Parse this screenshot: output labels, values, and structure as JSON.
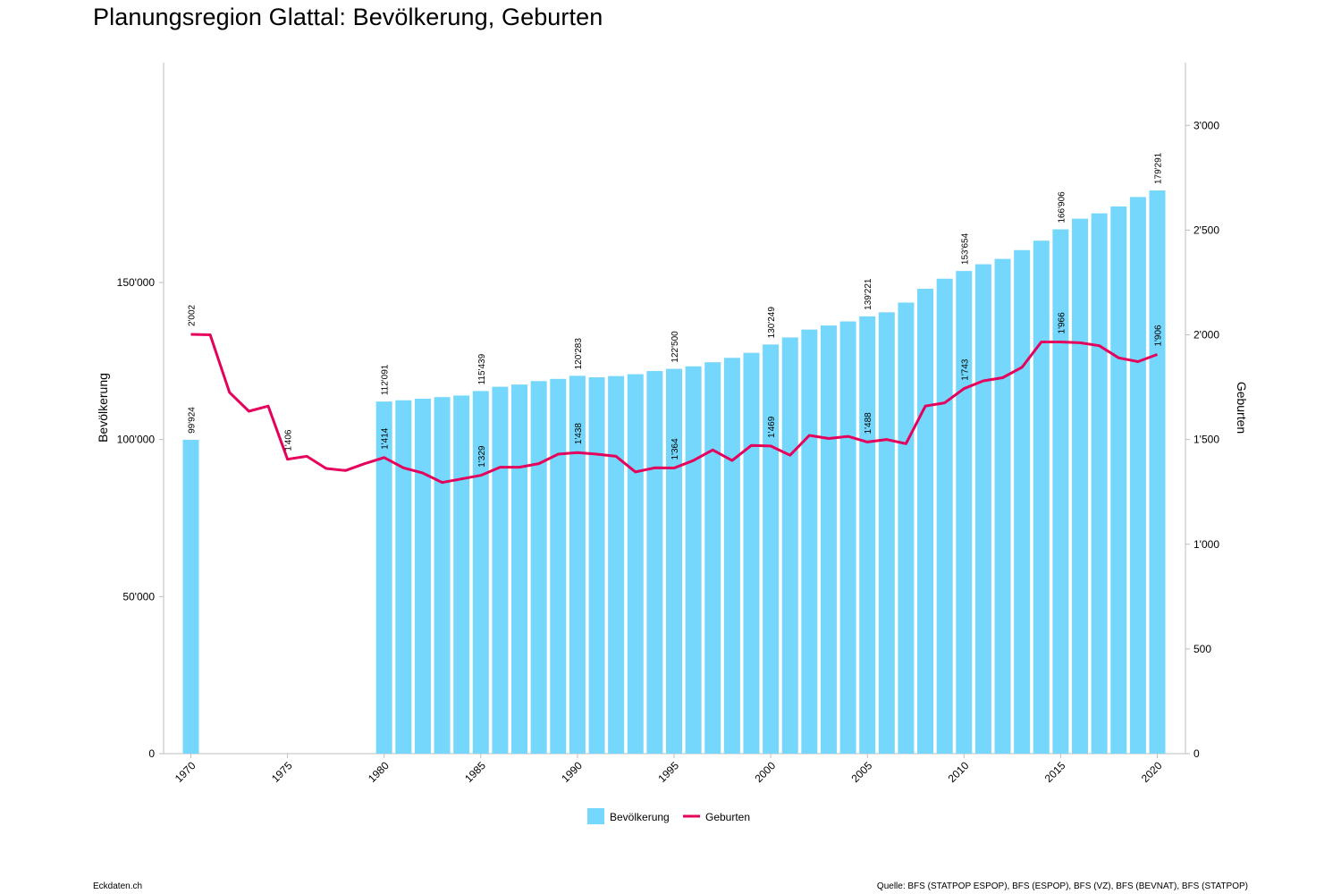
{
  "title": "Planungsregion Glattal: Bevölkerung, Geburten",
  "footer": {
    "site": "Eckdaten.ch",
    "source": "Quelle: BFS (STATPOP ESPOP), BFS (ESPOP), BFS (VZ), BFS (BEVNAT), BFS (STATPOP)"
  },
  "colors": {
    "bars": "#74d7fb",
    "line": "#e5005b",
    "axis": "#bdbdbd"
  },
  "chart_data": {
    "type": "bar+line",
    "x_ticks": [
      1970,
      1975,
      1980,
      1985,
      1990,
      1995,
      2000,
      2005,
      2010,
      2015,
      2020
    ],
    "left_axis": {
      "label": "Bevölkerung",
      "range": [
        0,
        220000
      ],
      "ticks": [
        "0",
        "50'000",
        "100'000",
        "150'000"
      ],
      "tick_values": [
        0,
        50000,
        100000,
        150000
      ]
    },
    "right_axis": {
      "label": "Geburten",
      "range": [
        0,
        3300
      ],
      "ticks": [
        "0",
        "500",
        "1'000",
        "1'500",
        "2'000",
        "2'500",
        "3'000"
      ],
      "tick_values": [
        0,
        500,
        1000,
        1500,
        2000,
        2500,
        3000
      ]
    },
    "grid": false,
    "legend_position": "bottom-center",
    "series": [
      {
        "name": "Bevölkerung",
        "type": "bar",
        "axis": "left",
        "points": [
          [
            1970,
            99924
          ],
          [
            1980,
            112091
          ],
          [
            1981,
            112500
          ],
          [
            1982,
            113000
          ],
          [
            1983,
            113500
          ],
          [
            1984,
            114000
          ],
          [
            1985,
            115439
          ],
          [
            1986,
            116800
          ],
          [
            1987,
            117500
          ],
          [
            1988,
            118600
          ],
          [
            1989,
            119300
          ],
          [
            1990,
            120283
          ],
          [
            1991,
            119800
          ],
          [
            1992,
            120200
          ],
          [
            1993,
            120800
          ],
          [
            1994,
            121800
          ],
          [
            1995,
            122500
          ],
          [
            1996,
            123300
          ],
          [
            1997,
            124600
          ],
          [
            1998,
            126000
          ],
          [
            1999,
            127600
          ],
          [
            2000,
            130249
          ],
          [
            2001,
            132500
          ],
          [
            2002,
            135000
          ],
          [
            2003,
            136300
          ],
          [
            2004,
            137600
          ],
          [
            2005,
            139221
          ],
          [
            2006,
            140500
          ],
          [
            2007,
            143600
          ],
          [
            2008,
            148000
          ],
          [
            2009,
            151200
          ],
          [
            2010,
            153654
          ],
          [
            2011,
            155800
          ],
          [
            2012,
            157500
          ],
          [
            2013,
            160300
          ],
          [
            2014,
            163300
          ],
          [
            2015,
            166906
          ],
          [
            2016,
            170300
          ],
          [
            2017,
            172000
          ],
          [
            2018,
            174200
          ],
          [
            2019,
            177200
          ],
          [
            2020,
            179291
          ]
        ],
        "labels": [
          [
            1970,
            "99'924"
          ],
          [
            1980,
            "112'091"
          ],
          [
            1985,
            "115'439"
          ],
          [
            1990,
            "120'283"
          ],
          [
            1995,
            "122'500"
          ],
          [
            2000,
            "130'249"
          ],
          [
            2005,
            "139'221"
          ],
          [
            2010,
            "153'654"
          ],
          [
            2015,
            "166'906"
          ],
          [
            2020,
            "179'291"
          ]
        ]
      },
      {
        "name": "Geburten",
        "type": "line",
        "axis": "right",
        "points": [
          [
            1970,
            2002
          ],
          [
            1971,
            2000
          ],
          [
            1972,
            1725
          ],
          [
            1973,
            1635
          ],
          [
            1974,
            1660
          ],
          [
            1975,
            1406
          ],
          [
            1976,
            1420
          ],
          [
            1977,
            1362
          ],
          [
            1978,
            1352
          ],
          [
            1979,
            1385
          ],
          [
            1980,
            1414
          ],
          [
            1981,
            1365
          ],
          [
            1982,
            1340
          ],
          [
            1983,
            1295
          ],
          [
            1984,
            1312
          ],
          [
            1985,
            1329
          ],
          [
            1986,
            1368
          ],
          [
            1987,
            1368
          ],
          [
            1988,
            1385
          ],
          [
            1989,
            1430
          ],
          [
            1990,
            1438
          ],
          [
            1991,
            1430
          ],
          [
            1992,
            1420
          ],
          [
            1993,
            1345
          ],
          [
            1994,
            1365
          ],
          [
            1995,
            1364
          ],
          [
            1996,
            1400
          ],
          [
            1997,
            1450
          ],
          [
            1998,
            1400
          ],
          [
            1999,
            1472
          ],
          [
            2000,
            1469
          ],
          [
            2001,
            1425
          ],
          [
            2002,
            1520
          ],
          [
            2003,
            1505
          ],
          [
            2004,
            1515
          ],
          [
            2005,
            1488
          ],
          [
            2006,
            1500
          ],
          [
            2007,
            1480
          ],
          [
            2008,
            1660
          ],
          [
            2009,
            1675
          ],
          [
            2010,
            1743
          ],
          [
            2011,
            1780
          ],
          [
            2012,
            1795
          ],
          [
            2013,
            1845
          ],
          [
            2014,
            1966
          ],
          [
            2015,
            1966
          ],
          [
            2016,
            1962
          ],
          [
            2017,
            1948
          ],
          [
            2018,
            1890
          ],
          [
            2019,
            1872
          ],
          [
            2020,
            1906
          ]
        ],
        "labels": [
          [
            1970,
            "2'002"
          ],
          [
            1975,
            "1'406"
          ],
          [
            1980,
            "1'414"
          ],
          [
            1985,
            "1'329"
          ],
          [
            1990,
            "1'438"
          ],
          [
            1995,
            "1'364"
          ],
          [
            2000,
            "1'469"
          ],
          [
            2005,
            "1'488"
          ],
          [
            2010,
            "1'743"
          ],
          [
            2015,
            "1'966"
          ],
          [
            2020,
            "1'906"
          ]
        ]
      }
    ]
  }
}
